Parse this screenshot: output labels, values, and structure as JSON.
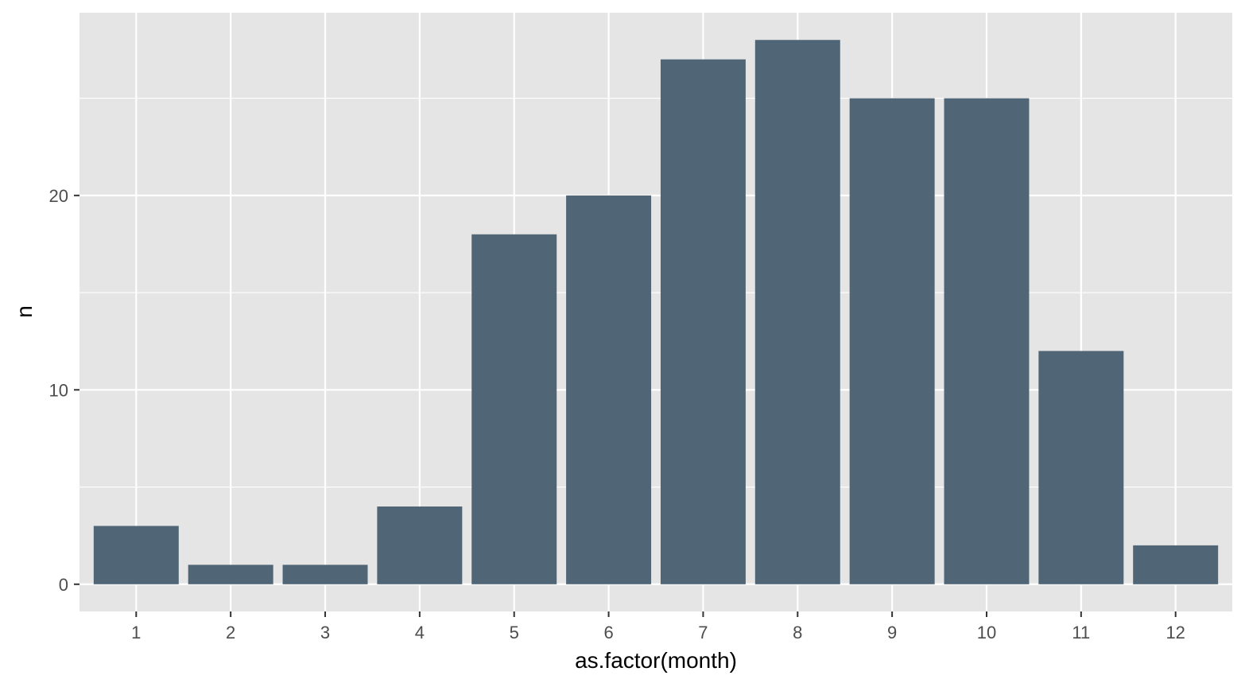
{
  "chart_data": {
    "type": "bar",
    "title": "",
    "xlabel": "as.factor(month)",
    "ylabel": "n",
    "categories": [
      "1",
      "2",
      "3",
      "4",
      "5",
      "6",
      "7",
      "8",
      "9",
      "10",
      "11",
      "12"
    ],
    "values": [
      3,
      1,
      1,
      4,
      18,
      20,
      27,
      28,
      25,
      25,
      12,
      2
    ],
    "ylim": [
      -1.4,
      29.4
    ],
    "yticks": [
      0,
      10,
      20
    ],
    "grid": true,
    "colors": {
      "bar": "#506676",
      "panel": "#e5e5e5",
      "grid": "#ffffff",
      "tick_text": "#4d4d4d",
      "axis_title": "#000000"
    }
  }
}
